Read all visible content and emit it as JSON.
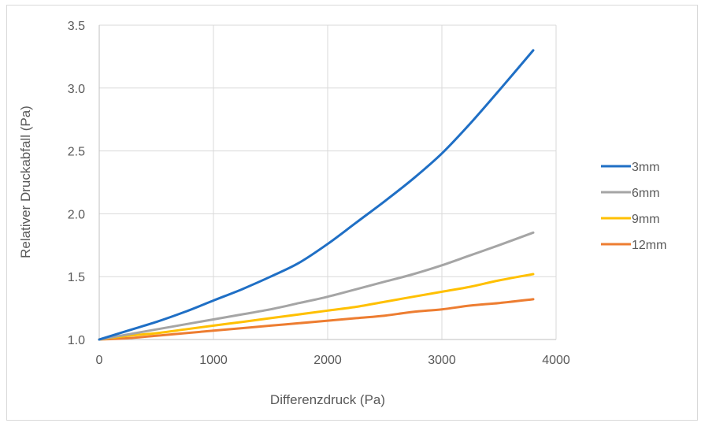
{
  "chart_data": {
    "type": "line",
    "xlabel": "Differenzdruck (Pa)",
    "ylabel": "Relativer Druckabfall (Pa)",
    "xlim": [
      0,
      4000
    ],
    "ylim": [
      1.0,
      3.5
    ],
    "x_ticks": [
      0,
      1000,
      2000,
      3000,
      4000
    ],
    "y_ticks": [
      1.0,
      1.5,
      2.0,
      2.5,
      3.0,
      3.5
    ],
    "x_tick_labels": [
      "0",
      "1000",
      "2000",
      "3000",
      "4000"
    ],
    "y_tick_labels": [
      "1.0",
      "1.5",
      "2.0",
      "2.5",
      "3.0",
      "3.5"
    ],
    "grid": "vertical and horizontal",
    "legend_position": "right",
    "x": [
      0,
      250,
      500,
      750,
      1000,
      1250,
      1500,
      1750,
      2000,
      2250,
      2500,
      2750,
      3000,
      3250,
      3500,
      3800
    ],
    "series": [
      {
        "name": "3mm",
        "color": "#1f6fc5",
        "values": [
          1.0,
          1.07,
          1.14,
          1.22,
          1.31,
          1.4,
          1.5,
          1.61,
          1.76,
          1.93,
          2.1,
          2.28,
          2.48,
          2.72,
          2.98,
          3.3
        ]
      },
      {
        "name": "6mm",
        "color": "#a5a5a5",
        "values": [
          1.0,
          1.04,
          1.08,
          1.12,
          1.16,
          1.2,
          1.24,
          1.29,
          1.34,
          1.4,
          1.46,
          1.52,
          1.59,
          1.67,
          1.75,
          1.85
        ]
      },
      {
        "name": "9mm",
        "color": "#ffc000",
        "values": [
          1.0,
          1.03,
          1.05,
          1.08,
          1.11,
          1.14,
          1.17,
          1.2,
          1.23,
          1.26,
          1.3,
          1.34,
          1.38,
          1.42,
          1.47,
          1.52
        ]
      },
      {
        "name": "12mm",
        "color": "#ed7d31",
        "values": [
          1.0,
          1.01,
          1.03,
          1.05,
          1.07,
          1.09,
          1.11,
          1.13,
          1.15,
          1.17,
          1.19,
          1.22,
          1.24,
          1.27,
          1.29,
          1.32
        ]
      }
    ]
  }
}
